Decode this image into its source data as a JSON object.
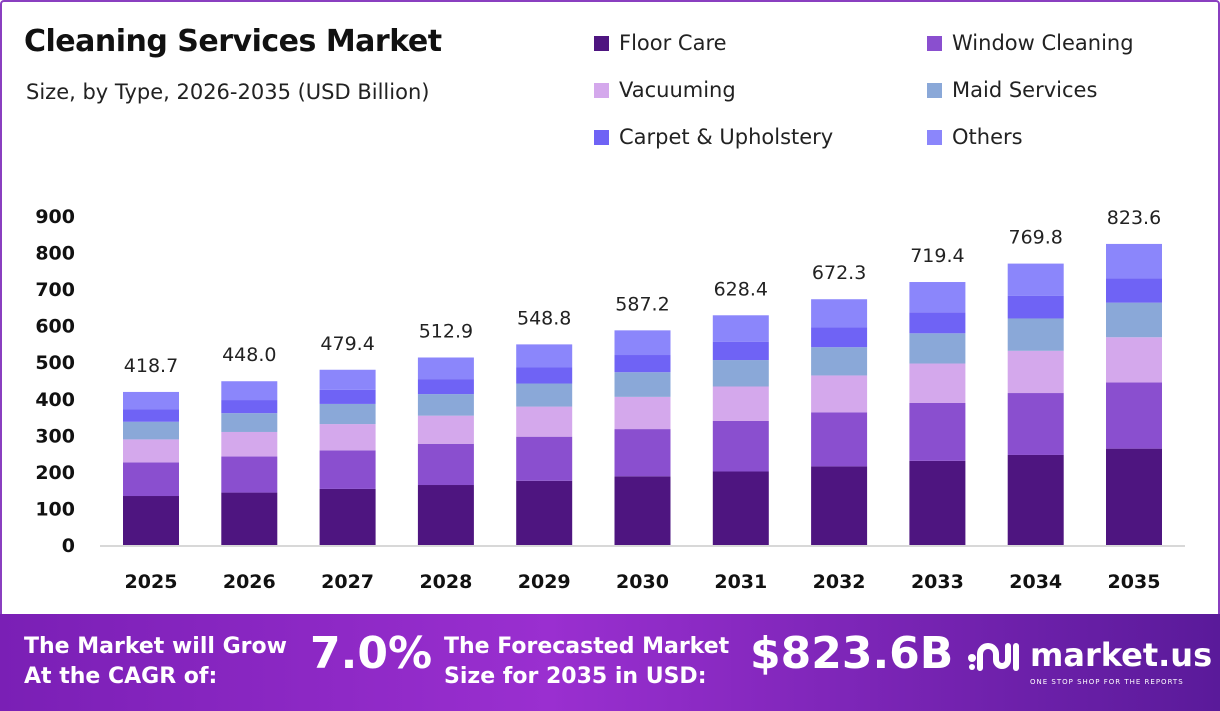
{
  "chart_data": {
    "type": "bar",
    "stacked": true,
    "title": "Cleaning Services Market",
    "subtitle": "Size, by Type, 2026-2035 (USD Billion)",
    "xlabel": "",
    "ylabel": "",
    "ylim": [
      0,
      900
    ],
    "yticks": [
      0,
      100,
      200,
      300,
      400,
      500,
      600,
      700,
      800,
      900
    ],
    "grid": false,
    "legend_position": "top-right",
    "categories": [
      "2025",
      "2026",
      "2027",
      "2028",
      "2029",
      "2030",
      "2031",
      "2032",
      "2033",
      "2034",
      "2035"
    ],
    "totals": [
      418.7,
      448.0,
      479.4,
      512.9,
      548.8,
      587.2,
      628.4,
      672.3,
      719.4,
      769.8,
      823.6
    ],
    "total_labels": [
      "418.7",
      "448.0",
      "479.4",
      "512.9",
      "548.8",
      "587.2",
      "628.4",
      "672.3",
      "719.4",
      "769.8",
      "823.6"
    ],
    "series": [
      {
        "name": "Floor Care",
        "color": "#4e1580",
        "values": [
          134.0,
          143.4,
          153.4,
          164.1,
          175.6,
          187.9,
          201.1,
          215.1,
          230.2,
          246.3,
          263.6
        ]
      },
      {
        "name": "Window Cleaning",
        "color": "#8a4fcf",
        "values": [
          92.1,
          98.6,
          105.5,
          112.8,
          120.7,
          129.2,
          138.2,
          147.9,
          158.3,
          169.4,
          181.2
        ]
      },
      {
        "name": "Vacuuming",
        "color": "#d4a8ec",
        "values": [
          62.8,
          67.2,
          71.9,
          76.9,
          82.3,
          88.1,
          94.3,
          100.8,
          107.9,
          115.5,
          123.5
        ]
      },
      {
        "name": "Maid Services",
        "color": "#8aa8d8",
        "values": [
          48.2,
          51.5,
          55.1,
          59.0,
          63.1,
          67.5,
          72.3,
          77.3,
          82.7,
          88.5,
          94.7
        ]
      },
      {
        "name": "Carpet & Upholstery",
        "color": "#6f63f5",
        "values": [
          33.5,
          35.8,
          38.4,
          41.0,
          43.9,
          47.0,
          50.3,
          53.8,
          57.6,
          61.6,
          65.9
        ]
      },
      {
        "name": "Others",
        "color": "#8b86fb",
        "values": [
          48.1,
          51.5,
          55.1,
          59.1,
          63.2,
          67.5,
          72.2,
          77.4,
          82.7,
          88.5,
          94.7
        ]
      }
    ]
  },
  "legend_order": [
    0,
    1,
    2,
    3,
    4,
    5
  ],
  "footer": {
    "cagr_label": "The Market will Grow At the CAGR of:",
    "cagr_value": "7.0%",
    "forecast_label": "The Forecasted Market Size for 2035 in USD:",
    "forecast_value": "$823.6B",
    "brand": "market.us",
    "tagline": "ONE STOP SHOP FOR THE REPORTS"
  }
}
